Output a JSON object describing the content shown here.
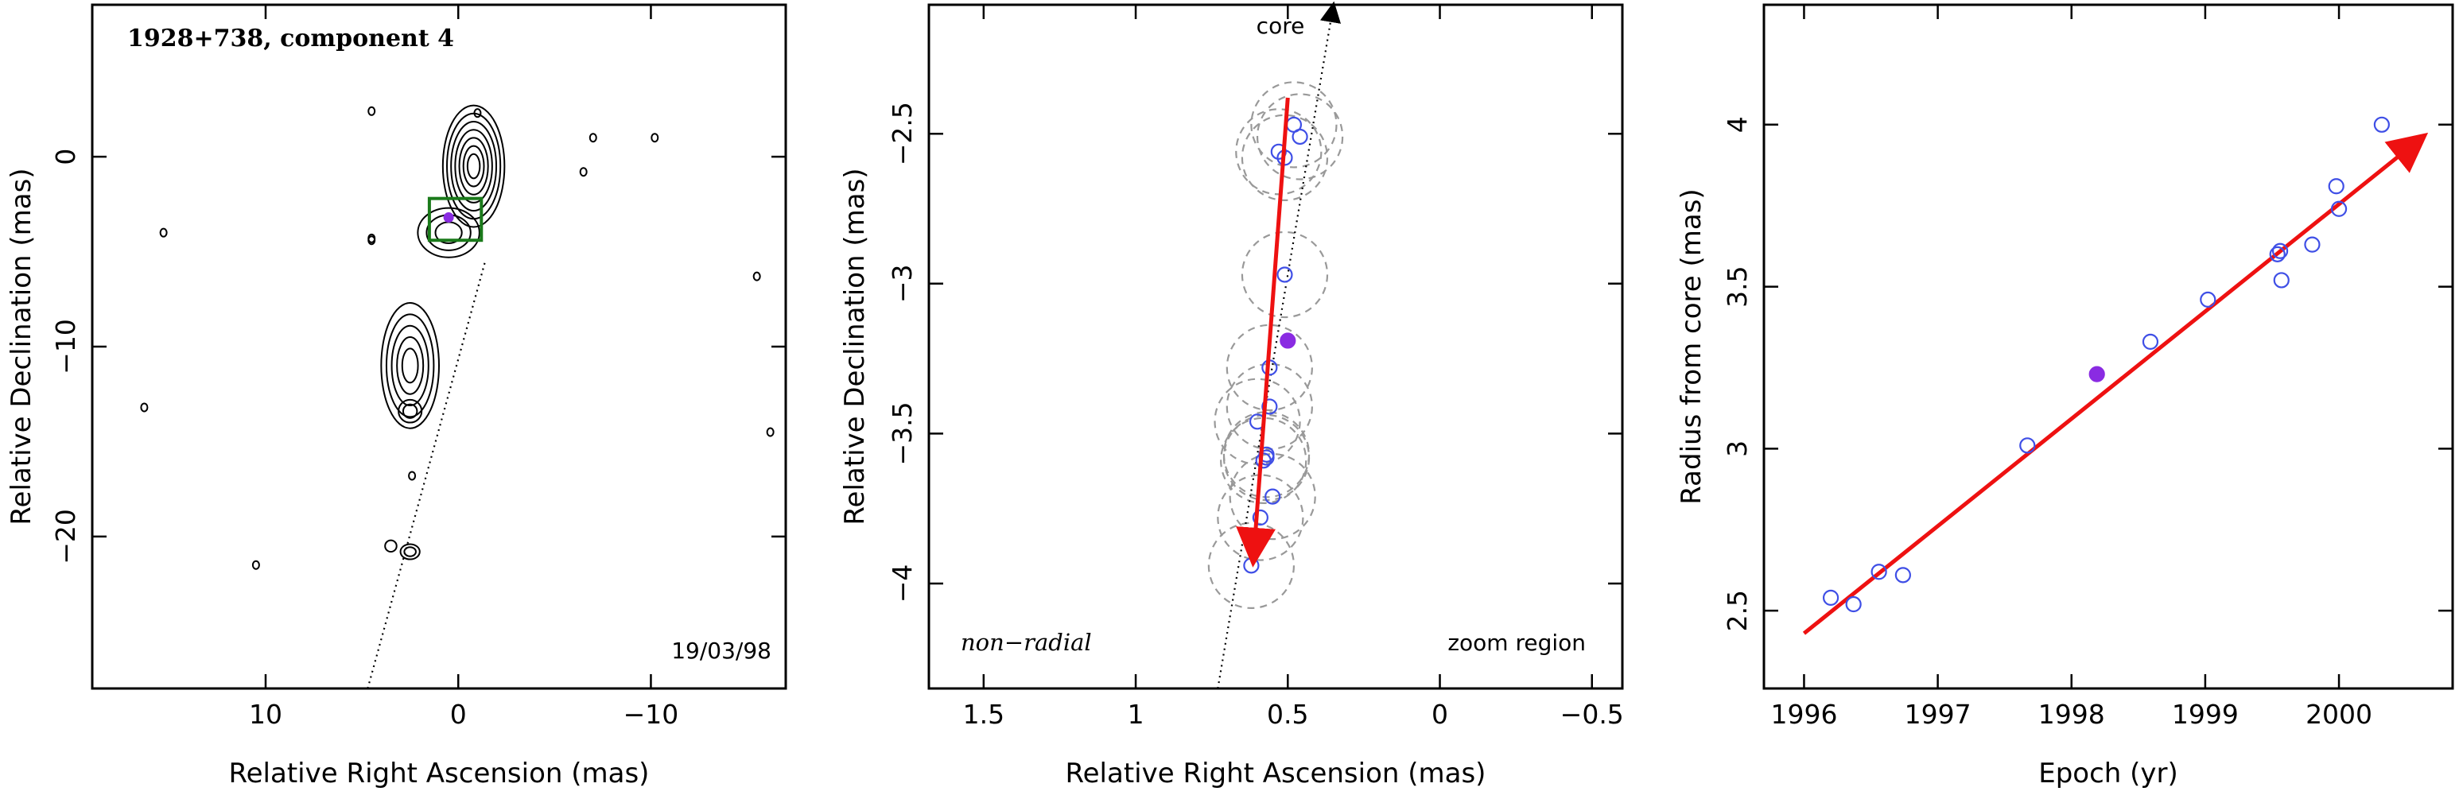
{
  "chart_data": [
    {
      "type": "contour",
      "title": "1928+738, component 4",
      "date_label": "19/03/98",
      "xlabel": "Relative Right Ascension (mas)",
      "ylabel": "Relative Declination (mas)",
      "xlim": [
        19,
        -17
      ],
      "ylim": [
        -28,
        8
      ],
      "xticks": [
        10,
        0,
        -10
      ],
      "xtick_labels": [
        "10",
        "0",
        "−10"
      ],
      "yticks": [
        0,
        -10,
        -20
      ],
      "ytick_labels": [
        "0",
        "−10",
        "−20"
      ],
      "contour_blobs": [
        {
          "cx": -0.8,
          "cy": -0.5,
          "rx": 1.6,
          "ry": 3.2,
          "levels": 7
        },
        {
          "cx": 0.5,
          "cy": -4.0,
          "rx": 1.6,
          "ry": 1.3,
          "levels": 3
        },
        {
          "cx": 2.5,
          "cy": -11.0,
          "rx": 1.5,
          "ry": 3.3,
          "levels": 5
        },
        {
          "cx": 2.5,
          "cy": -13.4,
          "rx": 0.6,
          "ry": 0.6,
          "levels": 2
        },
        {
          "cx": 2.5,
          "cy": -20.8,
          "rx": 0.5,
          "ry": 0.4,
          "levels": 2
        },
        {
          "cx": 3.5,
          "cy": -20.5,
          "rx": 0.3,
          "ry": 0.3,
          "levels": 1
        }
      ],
      "noise_contours": [
        [
          4.5,
          2.4
        ],
        [
          -1.0,
          2.3
        ],
        [
          -10.2,
          1.0
        ],
        [
          4.5,
          -4.4
        ],
        [
          15.3,
          -4.0
        ],
        [
          -15.5,
          -6.3
        ],
        [
          -16.2,
          -14.5
        ],
        [
          2.4,
          -16.8
        ],
        [
          4.5,
          -4.3
        ],
        [
          -6.5,
          -0.8
        ],
        [
          -7.0,
          1.0
        ],
        [
          10.5,
          -21.5
        ],
        [
          16.3,
          -13.2
        ]
      ],
      "jet_axis": {
        "x": [
          4.7,
          -1.4
        ],
        "y": [
          -28,
          -5.5
        ]
      },
      "zoom_box": {
        "x": [
          1.5,
          -1.2
        ],
        "y": [
          -2.2,
          -4.4
        ]
      },
      "series": [
        {
          "name": "",
          "x": [
            0.5
          ],
          "y": [
            -3.2
          ],
          "filled": true,
          "color": "#8a2be2"
        }
      ]
    },
    {
      "type": "scatter",
      "annotation_left": "non−radial",
      "annotation_right": "zoom region",
      "core_label": "core",
      "xlabel": "Relative Right Ascension (mas)",
      "ylabel": "Relative Declination (mas)",
      "xlim": [
        1.68,
        -0.6
      ],
      "ylim": [
        -4.35,
        -2.07
      ],
      "xticks": [
        1.5,
        1,
        0.5,
        0,
        -0.5
      ],
      "xtick_labels": [
        "1.5",
        "1",
        "0.5",
        "0",
        "−0.5"
      ],
      "yticks": [
        -2.5,
        -3,
        -3.5,
        -4
      ],
      "ytick_labels": [
        "−2.5",
        "−3",
        "−3.5",
        "−4"
      ],
      "core_direction": {
        "x": [
          0.73,
          0.35
        ],
        "y": [
          -4.35,
          -2.07
        ]
      },
      "motion_vector": {
        "x": [
          0.5,
          0.613
        ],
        "y": [
          -2.38,
          -3.92
        ]
      },
      "error_circle_radius": 0.14,
      "series": [
        {
          "name": "",
          "color": "#3f4fe6",
          "filled": false,
          "x": [
            0.48,
            0.53,
            0.51,
            0.46,
            0.51,
            0.56,
            0.56,
            0.6,
            0.57,
            0.58,
            0.57,
            0.55,
            0.59,
            0.62
          ],
          "y": [
            -2.47,
            -2.56,
            -2.58,
            -2.51,
            -2.97,
            -3.28,
            -3.41,
            -3.46,
            -3.57,
            -3.59,
            -3.58,
            -3.71,
            -3.78,
            -3.94
          ]
        },
        {
          "name": "",
          "color": "#8a2be2",
          "filled": true,
          "x": [
            0.5
          ],
          "y": [
            -3.19
          ]
        }
      ]
    },
    {
      "type": "scatter",
      "xlabel": "Epoch (yr)",
      "ylabel": "Radius from core (mas)",
      "xlim": [
        1995.7,
        2000.85
      ],
      "ylim": [
        2.26,
        4.37
      ],
      "xticks": [
        1996,
        1997,
        1998,
        1999,
        2000
      ],
      "xtick_labels": [
        "1996",
        "1997",
        "1998",
        "1999",
        "2000"
      ],
      "yticks": [
        2.5,
        3,
        3.5,
        4
      ],
      "ytick_labels": [
        "2.5",
        "3",
        "3.5",
        "4"
      ],
      "fit_line": {
        "x": [
          1996.0,
          2000.62
        ],
        "y": [
          2.43,
          3.96
        ]
      },
      "series": [
        {
          "name": "",
          "color": "#3f4fe6",
          "filled": false,
          "x": [
            1996.2,
            1996.37,
            1996.56,
            1996.74,
            1997.67,
            1998.59,
            1999.02,
            1999.54,
            1999.56,
            1999.57,
            1999.8,
            1999.98,
            2000.0,
            2000.32
          ],
          "y": [
            2.54,
            2.52,
            2.62,
            2.61,
            3.01,
            3.33,
            3.46,
            3.6,
            3.61,
            3.52,
            3.63,
            3.81,
            3.74,
            4.0
          ]
        },
        {
          "name": "",
          "color": "#8a2be2",
          "filled": true,
          "x": [
            1998.19
          ],
          "y": [
            3.23
          ]
        }
      ]
    }
  ]
}
